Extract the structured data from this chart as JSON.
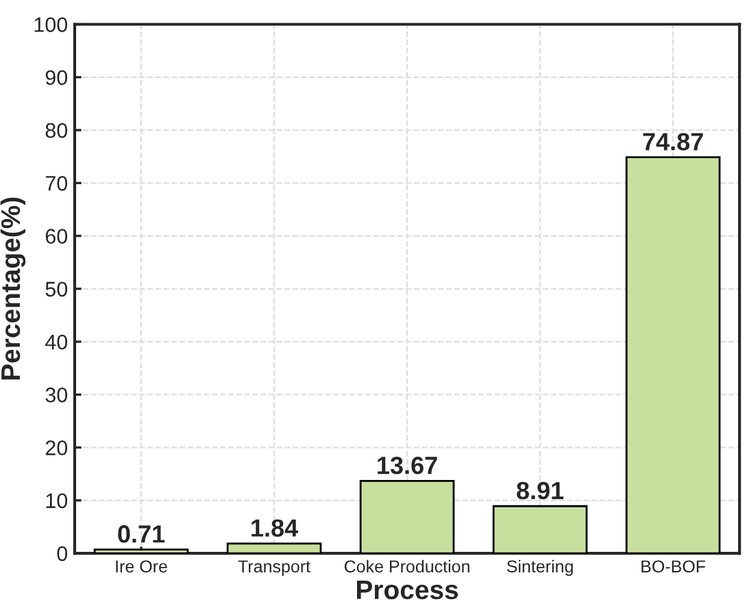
{
  "chart_data": {
    "type": "bar",
    "xlabel": "Process",
    "ylabel": "Percentage(%)",
    "categories": [
      "Ire Ore",
      "Transport",
      "Coke Production",
      "Sintering",
      "BO-BOF"
    ],
    "values": [
      0.71,
      1.84,
      13.67,
      8.91,
      74.87
    ],
    "color": "#c8e09e",
    "value_labels": [
      "0.71",
      "1.84",
      "13.67",
      "8.91",
      "74.87"
    ],
    "ylim": [
      0,
      100
    ],
    "yticks": [
      0,
      10,
      20,
      30,
      40,
      50,
      60,
      70,
      80,
      90,
      100
    ],
    "grid": true
  }
}
